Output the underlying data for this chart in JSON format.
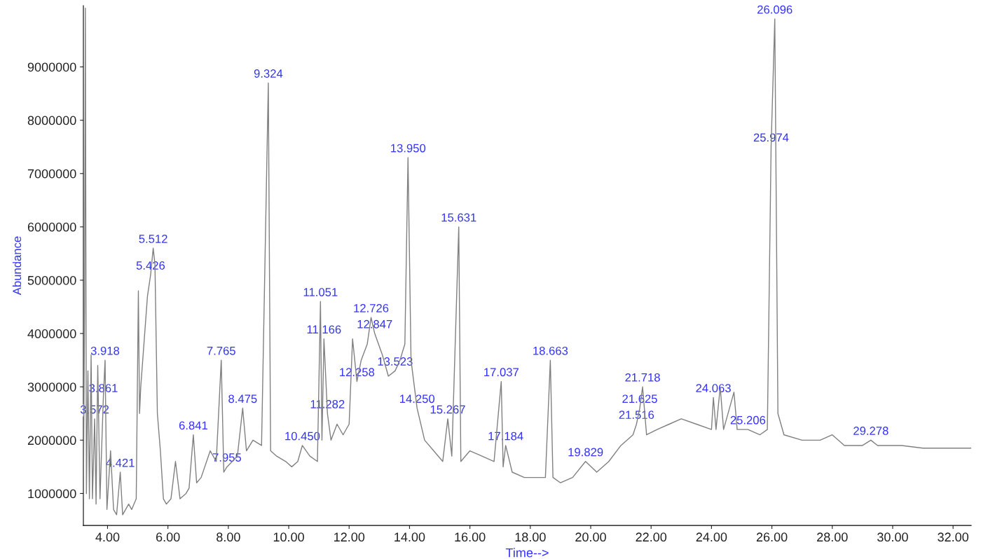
{
  "chart_data": {
    "type": "line",
    "xlabel": "Time-->",
    "ylabel": "Abundance",
    "x": [
      3.2,
      3.24,
      3.266,
      3.3,
      3.35,
      3.4,
      3.456,
      3.5,
      3.572,
      3.62,
      3.676,
      3.75,
      3.861,
      3.918,
      3.98,
      4.1,
      4.2,
      4.3,
      4.421,
      4.5,
      4.7,
      4.8,
      4.95,
      5.021,
      5.06,
      5.1,
      5.322,
      5.426,
      5.512,
      5.57,
      5.65,
      5.75,
      5.85,
      5.95,
      6.1,
      6.25,
      6.4,
      6.6,
      6.7,
      6.841,
      6.95,
      7.1,
      7.4,
      7.6,
      7.765,
      7.85,
      7.955,
      8.3,
      8.475,
      8.6,
      8.816,
      9.1,
      9.324,
      9.4,
      9.6,
      9.9,
      10.1,
      10.3,
      10.45,
      10.7,
      10.95,
      11.051,
      11.1,
      11.166,
      11.282,
      11.4,
      11.6,
      11.8,
      12.0,
      12.114,
      12.258,
      12.4,
      12.6,
      12.726,
      12.847,
      13.1,
      13.3,
      13.523,
      13.684,
      13.846,
      13.95,
      14.05,
      14.25,
      14.5,
      14.8,
      15.1,
      15.267,
      15.4,
      15.631,
      15.7,
      16.0,
      16.4,
      16.8,
      17.037,
      17.1,
      17.184,
      17.4,
      17.8,
      18.2,
      18.5,
      18.663,
      18.75,
      19.0,
      19.4,
      19.829,
      20.2,
      20.6,
      21.0,
      21.4,
      21.516,
      21.625,
      21.718,
      21.85,
      22.2,
      22.6,
      23.0,
      23.5,
      24.0,
      24.063,
      24.15,
      24.289,
      24.4,
      24.744,
      24.85,
      25.206,
      25.6,
      25.85,
      25.974,
      26.096,
      26.2,
      26.4,
      27.0,
      27.6,
      28.0,
      28.4,
      29.0,
      29.278,
      29.5,
      30.3,
      31.0,
      32.6
    ],
    "series": [
      {
        "color": "#808080",
        "values": [
          900000,
          4500000,
          10100000,
          1000000,
          3300000,
          900000,
          3600000,
          900000,
          2400000,
          800000,
          3400000,
          900000,
          2800000,
          3500000,
          700000,
          1800000,
          700000,
          600000,
          1400000,
          600000,
          800000,
          700000,
          900000,
          4800000,
          2500000,
          3000000,
          4700000,
          5100000,
          5600000,
          5300000,
          2500000,
          1800000,
          900000,
          800000,
          900000,
          1600000,
          900000,
          1000000,
          1100000,
          2100000,
          1200000,
          1300000,
          1800000,
          1600000,
          3500000,
          1400000,
          1500000,
          1700000,
          2600000,
          1800000,
          2000000,
          1900000,
          8700000,
          1800000,
          1700000,
          1600000,
          1500000,
          1600000,
          1900000,
          1700000,
          1600000,
          4600000,
          2000000,
          3900000,
          2500000,
          2000000,
          2300000,
          2100000,
          2300000,
          3900000,
          3100000,
          3500000,
          3800000,
          4300000,
          4000000,
          3600000,
          3200000,
          3300000,
          3500000,
          3800000,
          7300000,
          3500000,
          2600000,
          2000000,
          1800000,
          1600000,
          2400000,
          1700000,
          6000000,
          1600000,
          1800000,
          1700000,
          1600000,
          3100000,
          1500000,
          1900000,
          1400000,
          1300000,
          1300000,
          1300000,
          3500000,
          1300000,
          1200000,
          1300000,
          1600000,
          1400000,
          1600000,
          1900000,
          2100000,
          2300000,
          2600000,
          3000000,
          2100000,
          2200000,
          2300000,
          2400000,
          2300000,
          2200000,
          2800000,
          2200000,
          3000000,
          2200000,
          2900000,
          2200000,
          2200000,
          2100000,
          2200000,
          7500000,
          9900000,
          2500000,
          2100000,
          2000000,
          2000000,
          2100000,
          1900000,
          1900000,
          2000000,
          1900000,
          1900000,
          1850000,
          1850000
        ]
      }
    ],
    "xlim": [
      3.2,
      32.6
    ],
    "ylim": [
      400000,
      10150000
    ],
    "xticks": [
      {
        "value": 4,
        "label": "4.00"
      },
      {
        "value": 6,
        "label": "6.00"
      },
      {
        "value": 8,
        "label": "8.00"
      },
      {
        "value": 10,
        "label": "10.00"
      },
      {
        "value": 12,
        "label": "12.00"
      },
      {
        "value": 14,
        "label": "14.00"
      },
      {
        "value": 16,
        "label": "16.00"
      },
      {
        "value": 18,
        "label": "18.00"
      },
      {
        "value": 20,
        "label": "20.00"
      },
      {
        "value": 22,
        "label": "22.00"
      },
      {
        "value": 24,
        "label": "24.00"
      },
      {
        "value": 26,
        "label": "26.00"
      },
      {
        "value": 28,
        "label": "28.00"
      },
      {
        "value": 30,
        "label": "30.00"
      },
      {
        "value": 32,
        "label": "32.00"
      }
    ],
    "yticks": [
      1000000,
      2000000,
      3000000,
      4000000,
      5000000,
      6000000,
      7000000,
      8000000,
      9000000
    ],
    "grid": false,
    "marker": "none",
    "line_style": "solid",
    "annotations": [
      {
        "text": "3.572",
        "x": 3.572,
        "y": 2400000
      },
      {
        "text": "3.861",
        "x": 3.861,
        "y": 2800000
      },
      {
        "text": "3.918",
        "x": 3.918,
        "y": 3500000
      },
      {
        "text": "4.421",
        "x": 4.421,
        "y": 1400000
      },
      {
        "text": "5.426",
        "x": 5.426,
        "y": 5100000
      },
      {
        "text": "5.512",
        "x": 5.512,
        "y": 5600000
      },
      {
        "text": "6.841",
        "x": 6.841,
        "y": 2100000
      },
      {
        "text": "7.765",
        "x": 7.765,
        "y": 3500000
      },
      {
        "text": "7.955",
        "x": 7.955,
        "y": 1500000
      },
      {
        "text": "8.475",
        "x": 8.475,
        "y": 2600000
      },
      {
        "text": "9.324",
        "x": 9.324,
        "y": 8700000
      },
      {
        "text": "10.450",
        "x": 10.45,
        "y": 1900000
      },
      {
        "text": "11.051",
        "x": 11.051,
        "y": 4600000
      },
      {
        "text": "11.166",
        "x": 11.166,
        "y": 3900000
      },
      {
        "text": "11.282",
        "x": 11.282,
        "y": 2500000
      },
      {
        "text": "12.258",
        "x": 12.258,
        "y": 3100000
      },
      {
        "text": "12.726",
        "x": 12.726,
        "y": 4300000
      },
      {
        "text": "12.847",
        "x": 12.847,
        "y": 4000000
      },
      {
        "text": "13.523",
        "x": 13.523,
        "y": 3300000
      },
      {
        "text": "13.950",
        "x": 13.95,
        "y": 7300000
      },
      {
        "text": "14.250",
        "x": 14.25,
        "y": 2600000
      },
      {
        "text": "15.267",
        "x": 15.267,
        "y": 2400000
      },
      {
        "text": "15.631",
        "x": 15.631,
        "y": 6000000
      },
      {
        "text": "17.037",
        "x": 17.037,
        "y": 3100000
      },
      {
        "text": "17.184",
        "x": 17.184,
        "y": 1900000
      },
      {
        "text": "18.663",
        "x": 18.663,
        "y": 3500000
      },
      {
        "text": "19.829",
        "x": 19.829,
        "y": 1600000
      },
      {
        "text": "21.516",
        "x": 21.516,
        "y": 2300000
      },
      {
        "text": "21.625",
        "x": 21.625,
        "y": 2600000
      },
      {
        "text": "21.718",
        "x": 21.718,
        "y": 3000000
      },
      {
        "text": "24.063",
        "x": 24.063,
        "y": 2800000
      },
      {
        "text": "25.206",
        "x": 25.206,
        "y": 2200000
      },
      {
        "text": "25.974",
        "x": 25.974,
        "y": 7500000
      },
      {
        "text": "26.096",
        "x": 26.096,
        "y": 9900000
      },
      {
        "text": "29.278",
        "x": 29.278,
        "y": 2000000
      }
    ]
  }
}
